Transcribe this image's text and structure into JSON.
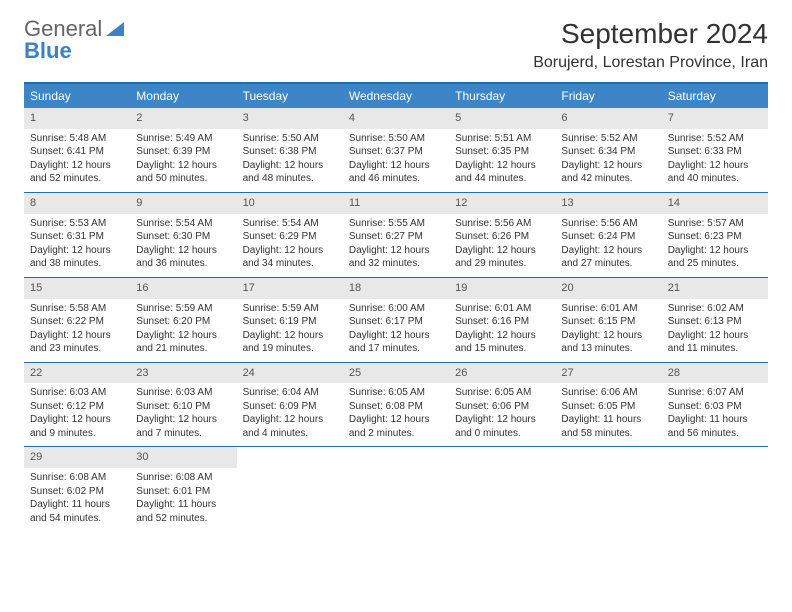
{
  "logo": {
    "general": "General",
    "blue": "Blue"
  },
  "title": "September 2024",
  "location": "Borujerd, Lorestan Province, Iran",
  "colors": {
    "header_bg": "#3d85c6",
    "header_text": "#ffffff",
    "border": "#2a6ca8",
    "daynum_bg": "#e8e8e8",
    "daynum_text": "#555555",
    "body_text": "#333333",
    "page_bg": "#ffffff",
    "logo_blue": "#3b82c4",
    "logo_gray": "#666666"
  },
  "typography": {
    "title_fontsize": 28,
    "location_fontsize": 16,
    "dayheader_fontsize": 12,
    "daynum_fontsize": 11,
    "cell_fontsize": 10
  },
  "day_names": [
    "Sunday",
    "Monday",
    "Tuesday",
    "Wednesday",
    "Thursday",
    "Friday",
    "Saturday"
  ],
  "weeks": [
    [
      {
        "n": "1",
        "sunrise": "Sunrise: 5:48 AM",
        "sunset": "Sunset: 6:41 PM",
        "daylight": "Daylight: 12 hours and 52 minutes."
      },
      {
        "n": "2",
        "sunrise": "Sunrise: 5:49 AM",
        "sunset": "Sunset: 6:39 PM",
        "daylight": "Daylight: 12 hours and 50 minutes."
      },
      {
        "n": "3",
        "sunrise": "Sunrise: 5:50 AM",
        "sunset": "Sunset: 6:38 PM",
        "daylight": "Daylight: 12 hours and 48 minutes."
      },
      {
        "n": "4",
        "sunrise": "Sunrise: 5:50 AM",
        "sunset": "Sunset: 6:37 PM",
        "daylight": "Daylight: 12 hours and 46 minutes."
      },
      {
        "n": "5",
        "sunrise": "Sunrise: 5:51 AM",
        "sunset": "Sunset: 6:35 PM",
        "daylight": "Daylight: 12 hours and 44 minutes."
      },
      {
        "n": "6",
        "sunrise": "Sunrise: 5:52 AM",
        "sunset": "Sunset: 6:34 PM",
        "daylight": "Daylight: 12 hours and 42 minutes."
      },
      {
        "n": "7",
        "sunrise": "Sunrise: 5:52 AM",
        "sunset": "Sunset: 6:33 PM",
        "daylight": "Daylight: 12 hours and 40 minutes."
      }
    ],
    [
      {
        "n": "8",
        "sunrise": "Sunrise: 5:53 AM",
        "sunset": "Sunset: 6:31 PM",
        "daylight": "Daylight: 12 hours and 38 minutes."
      },
      {
        "n": "9",
        "sunrise": "Sunrise: 5:54 AM",
        "sunset": "Sunset: 6:30 PM",
        "daylight": "Daylight: 12 hours and 36 minutes."
      },
      {
        "n": "10",
        "sunrise": "Sunrise: 5:54 AM",
        "sunset": "Sunset: 6:29 PM",
        "daylight": "Daylight: 12 hours and 34 minutes."
      },
      {
        "n": "11",
        "sunrise": "Sunrise: 5:55 AM",
        "sunset": "Sunset: 6:27 PM",
        "daylight": "Daylight: 12 hours and 32 minutes."
      },
      {
        "n": "12",
        "sunrise": "Sunrise: 5:56 AM",
        "sunset": "Sunset: 6:26 PM",
        "daylight": "Daylight: 12 hours and 29 minutes."
      },
      {
        "n": "13",
        "sunrise": "Sunrise: 5:56 AM",
        "sunset": "Sunset: 6:24 PM",
        "daylight": "Daylight: 12 hours and 27 minutes."
      },
      {
        "n": "14",
        "sunrise": "Sunrise: 5:57 AM",
        "sunset": "Sunset: 6:23 PM",
        "daylight": "Daylight: 12 hours and 25 minutes."
      }
    ],
    [
      {
        "n": "15",
        "sunrise": "Sunrise: 5:58 AM",
        "sunset": "Sunset: 6:22 PM",
        "daylight": "Daylight: 12 hours and 23 minutes."
      },
      {
        "n": "16",
        "sunrise": "Sunrise: 5:59 AM",
        "sunset": "Sunset: 6:20 PM",
        "daylight": "Daylight: 12 hours and 21 minutes."
      },
      {
        "n": "17",
        "sunrise": "Sunrise: 5:59 AM",
        "sunset": "Sunset: 6:19 PM",
        "daylight": "Daylight: 12 hours and 19 minutes."
      },
      {
        "n": "18",
        "sunrise": "Sunrise: 6:00 AM",
        "sunset": "Sunset: 6:17 PM",
        "daylight": "Daylight: 12 hours and 17 minutes."
      },
      {
        "n": "19",
        "sunrise": "Sunrise: 6:01 AM",
        "sunset": "Sunset: 6:16 PM",
        "daylight": "Daylight: 12 hours and 15 minutes."
      },
      {
        "n": "20",
        "sunrise": "Sunrise: 6:01 AM",
        "sunset": "Sunset: 6:15 PM",
        "daylight": "Daylight: 12 hours and 13 minutes."
      },
      {
        "n": "21",
        "sunrise": "Sunrise: 6:02 AM",
        "sunset": "Sunset: 6:13 PM",
        "daylight": "Daylight: 12 hours and 11 minutes."
      }
    ],
    [
      {
        "n": "22",
        "sunrise": "Sunrise: 6:03 AM",
        "sunset": "Sunset: 6:12 PM",
        "daylight": "Daylight: 12 hours and 9 minutes."
      },
      {
        "n": "23",
        "sunrise": "Sunrise: 6:03 AM",
        "sunset": "Sunset: 6:10 PM",
        "daylight": "Daylight: 12 hours and 7 minutes."
      },
      {
        "n": "24",
        "sunrise": "Sunrise: 6:04 AM",
        "sunset": "Sunset: 6:09 PM",
        "daylight": "Daylight: 12 hours and 4 minutes."
      },
      {
        "n": "25",
        "sunrise": "Sunrise: 6:05 AM",
        "sunset": "Sunset: 6:08 PM",
        "daylight": "Daylight: 12 hours and 2 minutes."
      },
      {
        "n": "26",
        "sunrise": "Sunrise: 6:05 AM",
        "sunset": "Sunset: 6:06 PM",
        "daylight": "Daylight: 12 hours and 0 minutes."
      },
      {
        "n": "27",
        "sunrise": "Sunrise: 6:06 AM",
        "sunset": "Sunset: 6:05 PM",
        "daylight": "Daylight: 11 hours and 58 minutes."
      },
      {
        "n": "28",
        "sunrise": "Sunrise: 6:07 AM",
        "sunset": "Sunset: 6:03 PM",
        "daylight": "Daylight: 11 hours and 56 minutes."
      }
    ],
    [
      {
        "n": "29",
        "sunrise": "Sunrise: 6:08 AM",
        "sunset": "Sunset: 6:02 PM",
        "daylight": "Daylight: 11 hours and 54 minutes."
      },
      {
        "n": "30",
        "sunrise": "Sunrise: 6:08 AM",
        "sunset": "Sunset: 6:01 PM",
        "daylight": "Daylight: 11 hours and 52 minutes."
      },
      null,
      null,
      null,
      null,
      null
    ]
  ]
}
